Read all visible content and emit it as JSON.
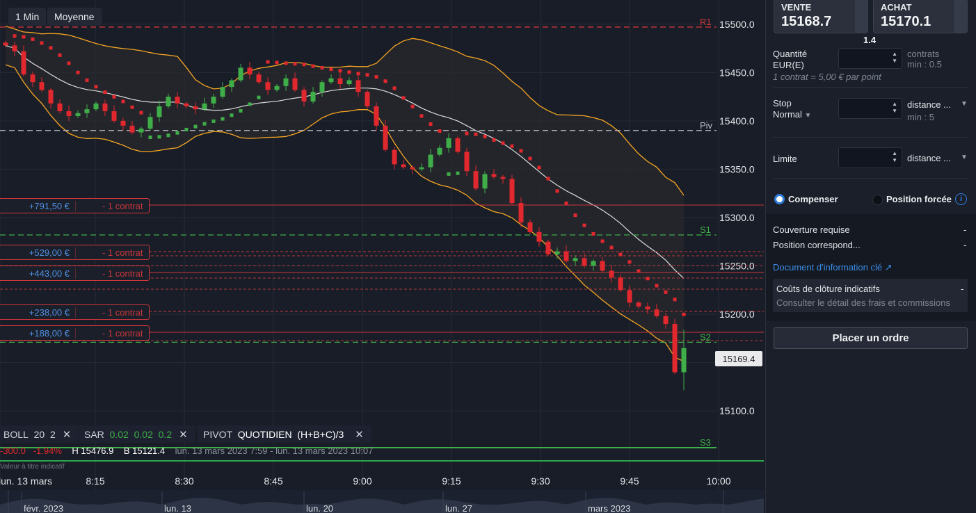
{
  "toolbar": {
    "timeframe": "1 Min",
    "chart_type": "Moyenne"
  },
  "price_axis": {
    "ticks": [
      "15500.0",
      "15450.0",
      "15400.0",
      "15350.0",
      "15300.0",
      "15250.0",
      "15200.0",
      "15150.0",
      "15100.0"
    ],
    "current_price": "15169.4"
  },
  "pivot_labels": {
    "r1": "R1",
    "piv": "Piv",
    "s1": "S1",
    "s2": "S2",
    "s3": "S3"
  },
  "positions": [
    {
      "pnl": "+791,50 €",
      "qty": "- 1 contrat"
    },
    {
      "pnl": "+529,00 €",
      "qty": "- 1 contrat"
    },
    {
      "pnl": "+443,00 €",
      "qty": "- 1 contrat"
    },
    {
      "pnl": "+238,00 €",
      "qty": "- 1 contrat"
    },
    {
      "pnl": "+188,00 €",
      "qty": "- 1 contrat"
    }
  ],
  "indicators": {
    "boll": {
      "name": "BOLL",
      "p1": "20",
      "p2": "2"
    },
    "sar": {
      "name": "SAR",
      "p1": "0.02",
      "p2": "0.02",
      "p3": "0.2"
    },
    "pivot": {
      "name": "PIVOT",
      "p1": "QUOTIDIEN",
      "p2": "(H+B+C)/3"
    }
  },
  "stats": {
    "change": "-300.0",
    "change_pct": "-1.94%",
    "high": "H 15476.9",
    "low": "B 15121.4",
    "range": "lun. 13 mars 2023 7:59 - lun. 13 mars 2023 10:07"
  },
  "disclaimer": "Valeur à titre indicatif",
  "time_axis": [
    "lun. 13 mars",
    "8:15",
    "8:30",
    "8:45",
    "9:00",
    "9:15",
    "9:30",
    "9:45",
    "10:00"
  ],
  "navigator": [
    "févr. 2023",
    "lun. 13",
    "lun. 20",
    "lun. 27",
    "mars 2023"
  ],
  "colors": {
    "up": "#3fae49",
    "down": "#e0282e",
    "band": "#f5a623",
    "mid": "#dcdcdc",
    "bg": "#191d27"
  },
  "order": {
    "sell_label": "VENTE",
    "sell_price": "15168.7",
    "buy_label": "ACHAT",
    "buy_price": "15170.1",
    "spread": "1.4",
    "qty_label_1": "Quantité",
    "qty_label_2": "EUR(E)",
    "qty_unit": "contrats",
    "qty_min": "min : 0.5",
    "contract_note": "1 contrat = 5,00 € par point",
    "stop_label": "Stop",
    "stop_type": "Normal",
    "stop_mode": "distance ...",
    "stop_min": "min : 5",
    "limit_label": "Limite",
    "limit_mode": "distance ...",
    "compensate": "Compenser",
    "forced": "Position forcée",
    "margin_label": "Couverture requise",
    "margin_value": "-",
    "corr_label": "Position correspond...",
    "corr_value": "-",
    "kid_link": "Document d'information clé",
    "costs_label": "Coûts de clôture indicatifs",
    "costs_value": "-",
    "costs_detail": "Consulter le détail des frais et commissions",
    "place_order": "Placer un ordre"
  },
  "chart_data": {
    "type": "candlestick",
    "interval": "1 Min",
    "xlabels": [
      "8:15",
      "8:30",
      "8:45",
      "9:00",
      "9:15",
      "9:30",
      "9:45",
      "10:00"
    ],
    "ylim": [
      15085,
      15525
    ],
    "pivot_levels": {
      "R1": 15497,
      "Piv": 15390,
      "S1": 15282,
      "S2": 15171,
      "S3": 15062
    },
    "close_path": [
      15478,
      15472,
      15448,
      15440,
      15432,
      15418,
      15410,
      15405,
      15408,
      15412,
      15418,
      15410,
      15400,
      15395,
      15388,
      15392,
      15404,
      15415,
      15425,
      15418,
      15415,
      15412,
      15418,
      15425,
      15435,
      15442,
      15455,
      15448,
      15440,
      15432,
      15436,
      15444,
      15432,
      15420,
      15430,
      15440,
      15444,
      15438,
      15442,
      15430,
      15415,
      15395,
      15370,
      15355,
      15352,
      15350,
      15352,
      15365,
      15372,
      15382,
      15368,
      15348,
      15330,
      15345,
      15342,
      15340,
      15315,
      15295,
      15285,
      15275,
      15262,
      15265,
      15255,
      15258,
      15250,
      15255,
      15245,
      15238,
      15225,
      15212,
      15208,
      15205,
      15198,
      15190,
      15140,
      15165
    ],
    "bands": {
      "period": 20,
      "mult": 2
    },
    "sar": {
      "step": 0.02,
      "max": 0.2
    }
  }
}
